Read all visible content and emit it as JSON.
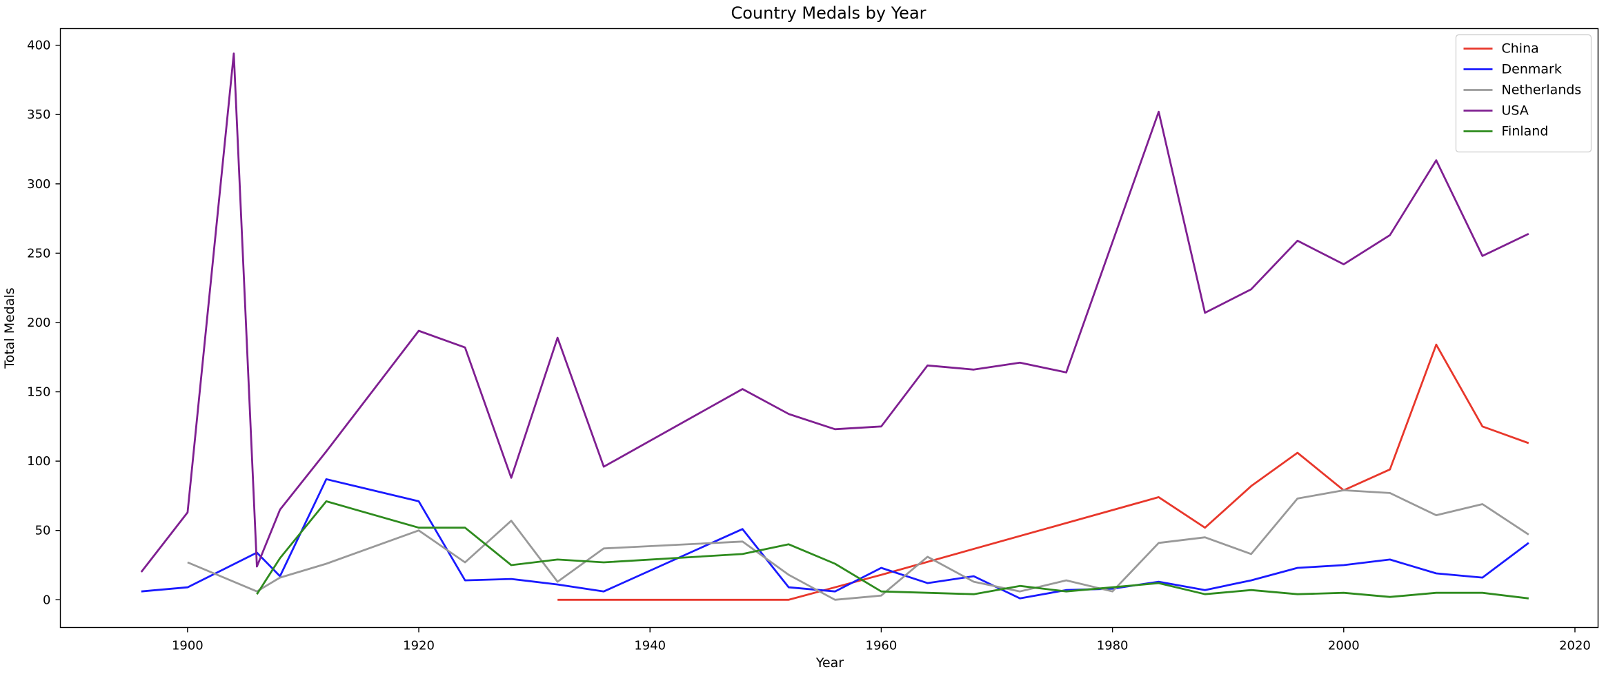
{
  "chart_data": {
    "type": "line",
    "title": "Country Medals by Year",
    "xlabel": "Year",
    "ylabel": "Total Medals",
    "xlim": [
      1889,
      2022
    ],
    "ylim": [
      -20,
      412
    ],
    "xticks": [
      1900,
      1920,
      1940,
      1960,
      1980,
      2000,
      2020
    ],
    "yticks": [
      0,
      50,
      100,
      150,
      200,
      250,
      300,
      350,
      400
    ],
    "grid": false,
    "legend_position": "top-right",
    "series": [
      {
        "name": "China",
        "color": "#e8372b",
        "x": [
          1932,
          1936,
          1948,
          1952,
          1956,
          1960,
          1984,
          1988,
          1992,
          1996,
          2000,
          2004,
          2008,
          2012,
          2016
        ],
        "y": [
          0,
          0,
          0,
          0,
          9,
          18,
          74,
          52,
          82,
          106,
          79,
          94,
          184,
          125,
          113
        ]
      },
      {
        "name": "Denmark",
        "color": "#1a1aff",
        "x": [
          1896,
          1900,
          1906,
          1908,
          1912,
          1920,
          1924,
          1928,
          1932,
          1936,
          1948,
          1952,
          1956,
          1960,
          1964,
          1968,
          1972,
          1976,
          1980,
          1984,
          1988,
          1992,
          1996,
          2000,
          2004,
          2008,
          2012,
          2016
        ],
        "y": [
          6,
          9,
          34,
          17,
          87,
          71,
          14,
          15,
          11,
          6,
          51,
          9,
          6,
          23,
          12,
          17,
          1,
          7,
          8,
          13,
          7,
          14,
          23,
          25,
          29,
          19,
          16,
          41
        ]
      },
      {
        "name": "Netherlands",
        "color": "#999999",
        "x": [
          1900,
          1906,
          1908,
          1912,
          1920,
          1924,
          1928,
          1932,
          1936,
          1948,
          1952,
          1956,
          1960,
          1964,
          1968,
          1972,
          1976,
          1980,
          1984,
          1988,
          1992,
          1996,
          2000,
          2004,
          2008,
          2012,
          2016
        ],
        "y": [
          27,
          6,
          16,
          26,
          50,
          27,
          57,
          13,
          37,
          42,
          18,
          0,
          3,
          31,
          13,
          6,
          14,
          6,
          41,
          45,
          33,
          73,
          79,
          77,
          61,
          69,
          47
        ]
      },
      {
        "name": "USA",
        "color": "#7f1f91",
        "x": [
          1896,
          1900,
          1904,
          1906,
          1908,
          1912,
          1920,
          1924,
          1928,
          1932,
          1936,
          1948,
          1952,
          1956,
          1960,
          1964,
          1968,
          1972,
          1976,
          1984,
          1988,
          1992,
          1996,
          2000,
          2004,
          2008,
          2012,
          2016
        ],
        "y": [
          20,
          63,
          394,
          24,
          65,
          107,
          194,
          182,
          88,
          189,
          96,
          152,
          134,
          123,
          125,
          169,
          166,
          171,
          164,
          352,
          207,
          224,
          259,
          242,
          263,
          317,
          248,
          264
        ]
      },
      {
        "name": "Finland",
        "color": "#2e8b1e",
        "x": [
          1906,
          1908,
          1912,
          1920,
          1924,
          1928,
          1932,
          1936,
          1948,
          1952,
          1956,
          1960,
          1964,
          1968,
          1972,
          1976,
          1980,
          1984,
          1988,
          1992,
          1996,
          2000,
          2004,
          2008,
          2012,
          2016
        ],
        "y": [
          4,
          30,
          71,
          52,
          52,
          25,
          29,
          27,
          33,
          40,
          26,
          6,
          5,
          4,
          10,
          6,
          9,
          12,
          4,
          7,
          4,
          5,
          2,
          5,
          5,
          1
        ]
      }
    ]
  }
}
